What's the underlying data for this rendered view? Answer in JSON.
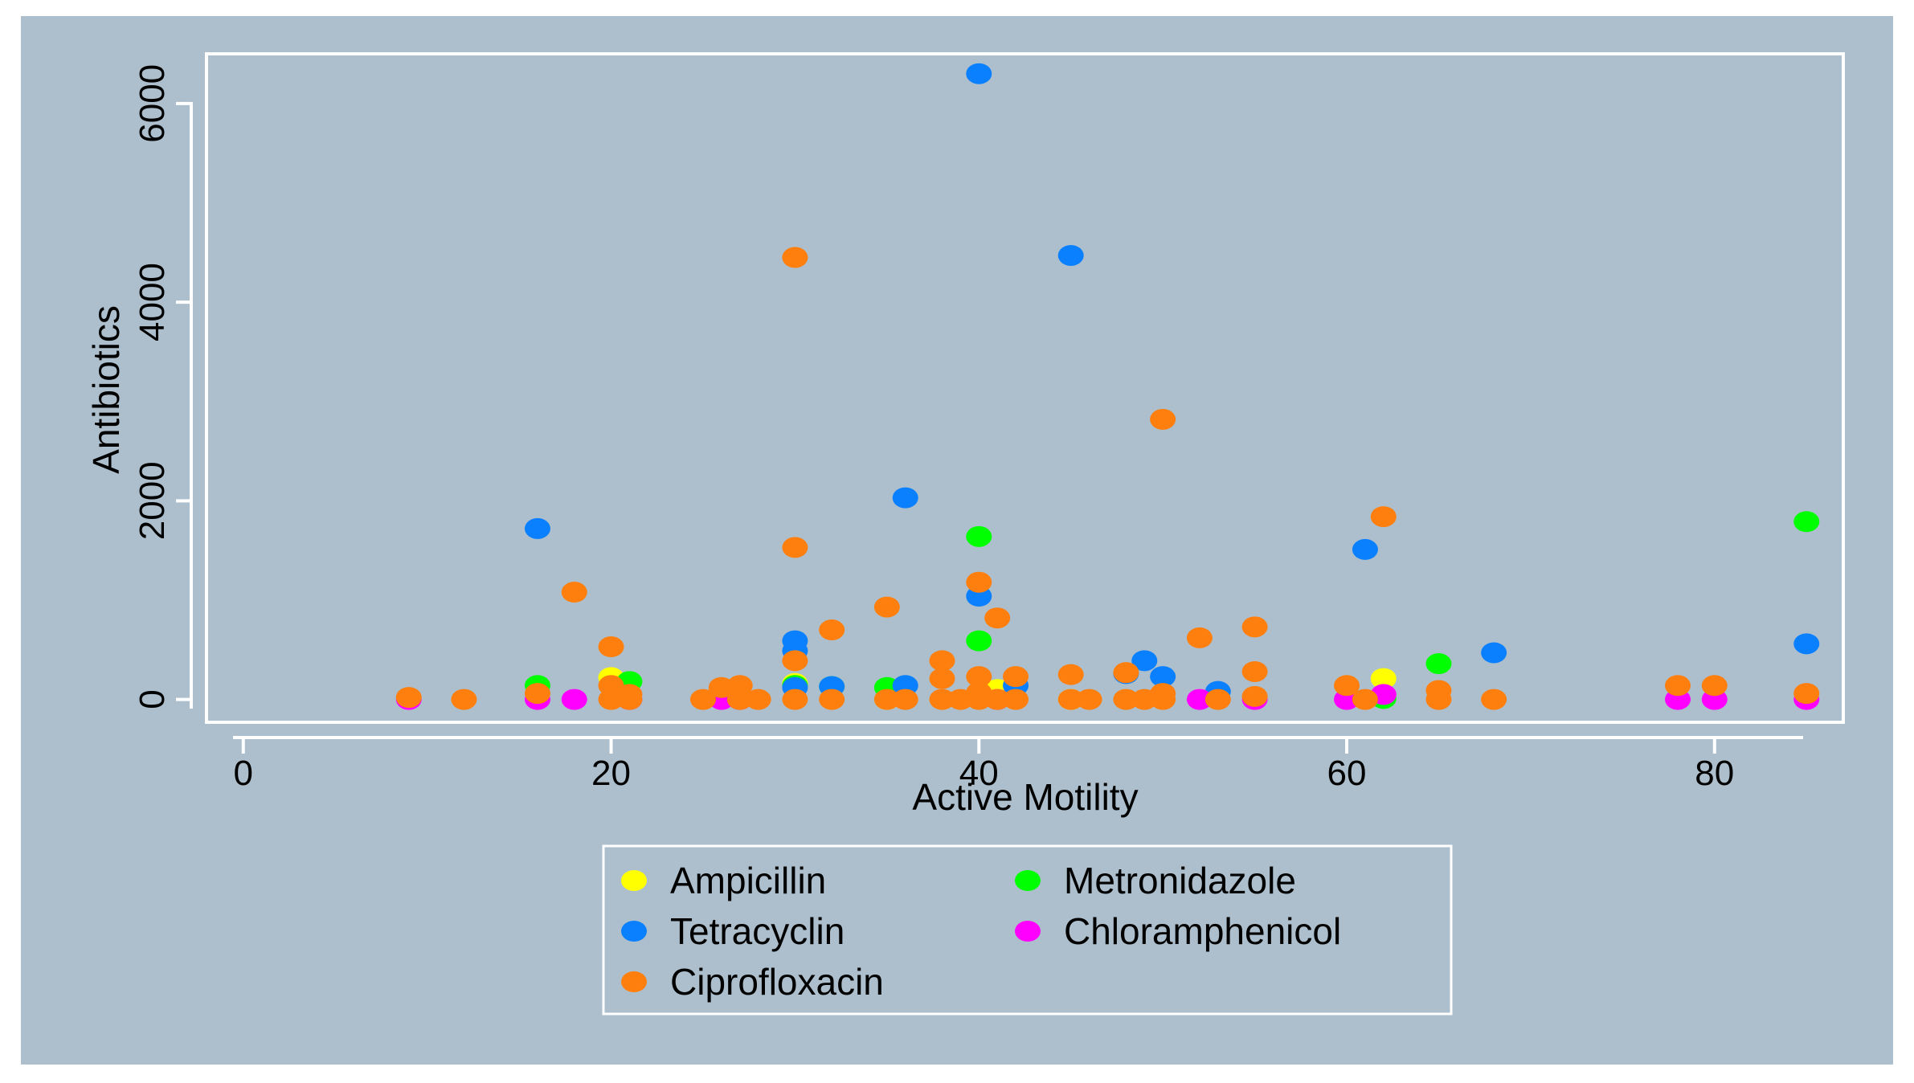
{
  "chart_data": {
    "type": "scatter",
    "title": "",
    "xlabel": "Active Motility",
    "ylabel": "Antibiotics",
    "xlim": [
      -2,
      87
    ],
    "ylim": [
      -230,
      6500
    ],
    "xticks": [
      "0",
      "20",
      "40",
      "60",
      "80"
    ],
    "yticks": [
      "0",
      "2000",
      "4000",
      "6000"
    ],
    "grid": false,
    "legend_position": "bottom",
    "colors": {
      "panel_background": "#adbfcc",
      "axis": "#ffffff",
      "text": "#000000"
    },
    "series": [
      {
        "name": "Ampicillin",
        "color": "#ffff00",
        "points": [
          [
            20,
            220
          ],
          [
            30,
            160
          ],
          [
            41,
            100
          ],
          [
            62,
            210
          ],
          [
            35,
            0
          ],
          [
            45,
            0
          ]
        ]
      },
      {
        "name": "Metronidazole",
        "color": "#00ff00",
        "points": [
          [
            16,
            140
          ],
          [
            21,
            180
          ],
          [
            30,
            140
          ],
          [
            32,
            130
          ],
          [
            35,
            120
          ],
          [
            40,
            1640
          ],
          [
            40,
            590
          ],
          [
            62,
            10
          ],
          [
            65,
            360
          ],
          [
            85,
            1790
          ]
        ]
      },
      {
        "name": "Tetracyclin",
        "color": "#0a80ff",
        "points": [
          [
            16,
            1720
          ],
          [
            30,
            590
          ],
          [
            30,
            490
          ],
          [
            30,
            120
          ],
          [
            32,
            130
          ],
          [
            36,
            140
          ],
          [
            36,
            2030
          ],
          [
            40,
            6300
          ],
          [
            40,
            1040
          ],
          [
            42,
            140
          ],
          [
            45,
            4470
          ],
          [
            48,
            260
          ],
          [
            49,
            390
          ],
          [
            50,
            230
          ],
          [
            53,
            80
          ],
          [
            61,
            1510
          ],
          [
            68,
            470
          ],
          [
            85,
            560
          ]
        ]
      },
      {
        "name": "Chloramphenicol",
        "color": "#ff00ff",
        "points": [
          [
            9,
            0
          ],
          [
            16,
            0
          ],
          [
            18,
            0
          ],
          [
            21,
            0
          ],
          [
            26,
            0
          ],
          [
            27,
            0
          ],
          [
            41,
            0
          ],
          [
            52,
            0
          ],
          [
            55,
            0
          ],
          [
            60,
            0
          ],
          [
            62,
            50
          ],
          [
            78,
            0
          ],
          [
            80,
            0
          ],
          [
            85,
            0
          ]
        ]
      },
      {
        "name": "Ciprofloxacin",
        "color": "#ff7f0e",
        "points": [
          [
            9,
            20
          ],
          [
            12,
            0
          ],
          [
            16,
            60
          ],
          [
            18,
            1080
          ],
          [
            20,
            530
          ],
          [
            20,
            140
          ],
          [
            20,
            0
          ],
          [
            21,
            50
          ],
          [
            21,
            0
          ],
          [
            25,
            0
          ],
          [
            26,
            120
          ],
          [
            27,
            140
          ],
          [
            27,
            0
          ],
          [
            28,
            0
          ],
          [
            30,
            4450
          ],
          [
            30,
            1530
          ],
          [
            30,
            390
          ],
          [
            30,
            0
          ],
          [
            32,
            700
          ],
          [
            32,
            0
          ],
          [
            35,
            930
          ],
          [
            35,
            0
          ],
          [
            36,
            0
          ],
          [
            38,
            390
          ],
          [
            38,
            210
          ],
          [
            38,
            0
          ],
          [
            39,
            0
          ],
          [
            40,
            1180
          ],
          [
            40,
            230
          ],
          [
            40,
            70
          ],
          [
            40,
            0
          ],
          [
            41,
            820
          ],
          [
            41,
            0
          ],
          [
            42,
            230
          ],
          [
            42,
            0
          ],
          [
            45,
            250
          ],
          [
            45,
            0
          ],
          [
            46,
            0
          ],
          [
            48,
            270
          ],
          [
            48,
            0
          ],
          [
            49,
            0
          ],
          [
            50,
            2820
          ],
          [
            50,
            60
          ],
          [
            50,
            0
          ],
          [
            52,
            620
          ],
          [
            53,
            0
          ],
          [
            55,
            730
          ],
          [
            55,
            280
          ],
          [
            55,
            30
          ],
          [
            60,
            140
          ],
          [
            61,
            0
          ],
          [
            62,
            1840
          ],
          [
            65,
            90
          ],
          [
            65,
            0
          ],
          [
            68,
            0
          ],
          [
            78,
            140
          ],
          [
            80,
            140
          ],
          [
            85,
            60
          ]
        ]
      }
    ],
    "legend": {
      "columns": [
        [
          "Ampicillin",
          "Tetracyclin",
          "Ciprofloxacin"
        ],
        [
          "Metronidazole",
          "Chloramphenicol"
        ]
      ]
    }
  }
}
